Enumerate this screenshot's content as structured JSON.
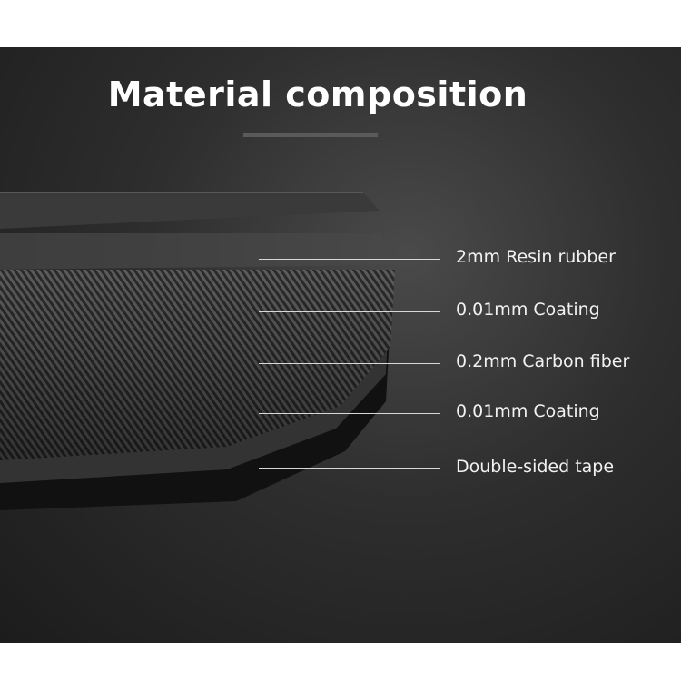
{
  "title": "Material  composition",
  "layers": [
    {
      "label": "2mm Resin rubber"
    },
    {
      "label": "0.01mm Coating"
    },
    {
      "label": "0.2mm Carbon fiber"
    },
    {
      "label": "0.01mm Coating"
    },
    {
      "label": "Double-sided tape"
    }
  ],
  "colors": {
    "background": "#2a2a2a",
    "text": "#ffffff"
  }
}
